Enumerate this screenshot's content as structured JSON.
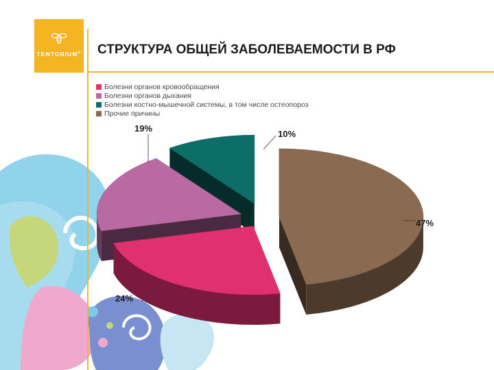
{
  "slide": {
    "title": "СТРУКТУРА ОБЩЕЙ ЗАБОЛЕВАЕМОСТИ В РФ",
    "logo_text": "TENTORIUM",
    "logo_mark": "®"
  },
  "colors": {
    "accent": "#f5b523",
    "cardio": "#e0306e",
    "respiratory": "#b96aa3",
    "musculo": "#0d6e68",
    "other": "#8a6a50"
  },
  "chart_data": {
    "type": "pie",
    "style": "3d-exploded",
    "title": "СТРУКТУРА ОБЩЕЙ ЗАБОЛЕВАЕМОСТИ В РФ",
    "legend_position": "top-left",
    "categories": [
      "Болезни органов кровообращения",
      "Болезни органов дыхания",
      "Болезни костно-мышечной системы, в том числе остеопороз",
      "Прочие причины"
    ],
    "values": [
      24,
      19,
      10,
      47
    ],
    "labels": [
      "24%",
      "19%",
      "10%",
      "47%"
    ],
    "colors": [
      "#e0306e",
      "#b96aa3",
      "#0d6e68",
      "#8a6a50"
    ]
  }
}
